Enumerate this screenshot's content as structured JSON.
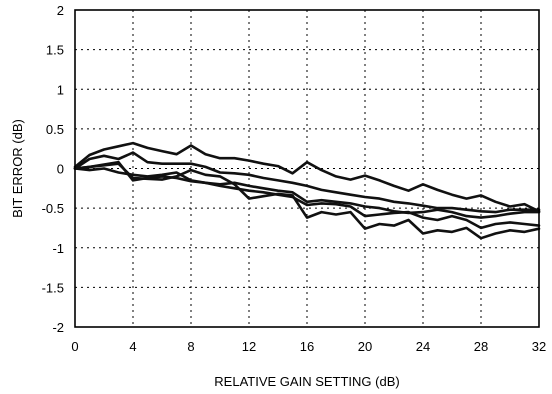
{
  "chart_data": {
    "type": "line",
    "title": "",
    "xlabel": "RELATIVE GAIN SETTING (dB)",
    "ylabel": "BIT ERROR (dB)",
    "xlim": [
      0,
      32
    ],
    "ylim": [
      -2,
      2
    ],
    "x_ticks": [
      0,
      4,
      8,
      12,
      16,
      20,
      24,
      28,
      32
    ],
    "y_ticks": [
      2,
      1.5,
      1,
      0.5,
      0,
      -0.5,
      -1,
      -1.5,
      -2
    ],
    "x_tick_labels": [
      "0",
      "4",
      "8",
      "12",
      "16",
      "20",
      "24",
      "28",
      "32"
    ],
    "y_tick_labels": [
      "2",
      "1.5",
      "1",
      "0.5",
      "0",
      "-0.5",
      "-1",
      "-1.5",
      "-2"
    ],
    "grid": true,
    "series": [
      {
        "x": [
          0,
          1,
          2,
          3,
          4,
          5,
          6,
          7,
          8,
          9,
          10,
          11,
          12,
          13,
          14,
          15,
          16,
          17,
          18,
          19,
          20,
          21,
          22,
          23,
          24,
          25,
          26,
          27,
          28,
          29,
          30,
          31,
          32
        ],
        "values": [
          0.02,
          0.17,
          0.24,
          0.28,
          0.32,
          0.26,
          0.22,
          0.18,
          0.29,
          0.18,
          0.13,
          0.13,
          0.1,
          0.06,
          0.03,
          -0.06,
          0.08,
          -0.02,
          -0.1,
          -0.14,
          -0.09,
          -0.15,
          -0.22,
          -0.28,
          -0.2,
          -0.27,
          -0.33,
          -0.38,
          -0.34,
          -0.42,
          -0.48,
          -0.45,
          -0.54
        ]
      },
      {
        "x": [
          0,
          1,
          2,
          3,
          4,
          5,
          6,
          7,
          8,
          9,
          10,
          11,
          12,
          13,
          14,
          15,
          16,
          17,
          18,
          19,
          20,
          21,
          22,
          23,
          24,
          25,
          26,
          27,
          28,
          29,
          30,
          31,
          32
        ],
        "values": [
          0.0,
          0.12,
          0.16,
          0.12,
          0.2,
          0.08,
          0.06,
          0.06,
          0.06,
          0.02,
          -0.05,
          -0.06,
          -0.08,
          -0.12,
          -0.15,
          -0.18,
          -0.22,
          -0.27,
          -0.3,
          -0.33,
          -0.36,
          -0.38,
          -0.42,
          -0.44,
          -0.47,
          -0.5,
          -0.5,
          -0.52,
          -0.54,
          -0.55,
          -0.52,
          -0.52,
          -0.52
        ]
      },
      {
        "x": [
          0,
          1,
          2,
          3,
          4,
          5,
          6,
          7,
          8,
          9,
          10,
          11,
          12,
          13,
          14,
          15,
          16,
          17,
          18,
          19,
          20,
          21,
          22,
          23,
          24,
          25,
          26,
          27,
          28,
          29,
          30,
          31,
          32
        ],
        "values": [
          0.0,
          -0.02,
          0.0,
          -0.05,
          -0.08,
          -0.1,
          -0.08,
          -0.05,
          -0.15,
          -0.18,
          -0.2,
          -0.18,
          -0.22,
          -0.25,
          -0.28,
          -0.3,
          -0.42,
          -0.4,
          -0.42,
          -0.44,
          -0.48,
          -0.5,
          -0.54,
          -0.56,
          -0.55,
          -0.52,
          -0.55,
          -0.6,
          -0.62,
          -0.6,
          -0.57,
          -0.55,
          -0.55
        ]
      },
      {
        "x": [
          0,
          1,
          2,
          3,
          4,
          5,
          6,
          7,
          8,
          9,
          10,
          11,
          12,
          13,
          14,
          15,
          16,
          17,
          18,
          19,
          20,
          21,
          22,
          23,
          24,
          25,
          26,
          27,
          28,
          29,
          30,
          31,
          32
        ],
        "values": [
          0.0,
          0.02,
          0.05,
          0.08,
          -0.15,
          -0.12,
          -0.1,
          -0.12,
          -0.16,
          -0.18,
          -0.22,
          -0.25,
          -0.28,
          -0.3,
          -0.33,
          -0.36,
          -0.46,
          -0.44,
          -0.45,
          -0.48,
          -0.6,
          -0.58,
          -0.56,
          -0.55,
          -0.62,
          -0.65,
          -0.6,
          -0.65,
          -0.75,
          -0.7,
          -0.68,
          -0.7,
          -0.72
        ]
      },
      {
        "x": [
          0,
          1,
          2,
          3,
          4,
          5,
          6,
          7,
          8,
          9,
          10,
          11,
          12,
          13,
          14,
          15,
          16,
          17,
          18,
          19,
          20,
          21,
          22,
          23,
          24,
          25,
          26,
          27,
          28,
          29,
          30,
          31,
          32
        ],
        "values": [
          0.0,
          0.02,
          0.04,
          0.06,
          -0.12,
          -0.13,
          -0.14,
          -0.1,
          -0.02,
          -0.08,
          -0.1,
          -0.2,
          -0.38,
          -0.35,
          -0.32,
          -0.34,
          -0.62,
          -0.55,
          -0.58,
          -0.55,
          -0.76,
          -0.7,
          -0.72,
          -0.65,
          -0.82,
          -0.78,
          -0.8,
          -0.75,
          -0.88,
          -0.82,
          -0.78,
          -0.8,
          -0.76
        ]
      }
    ]
  }
}
